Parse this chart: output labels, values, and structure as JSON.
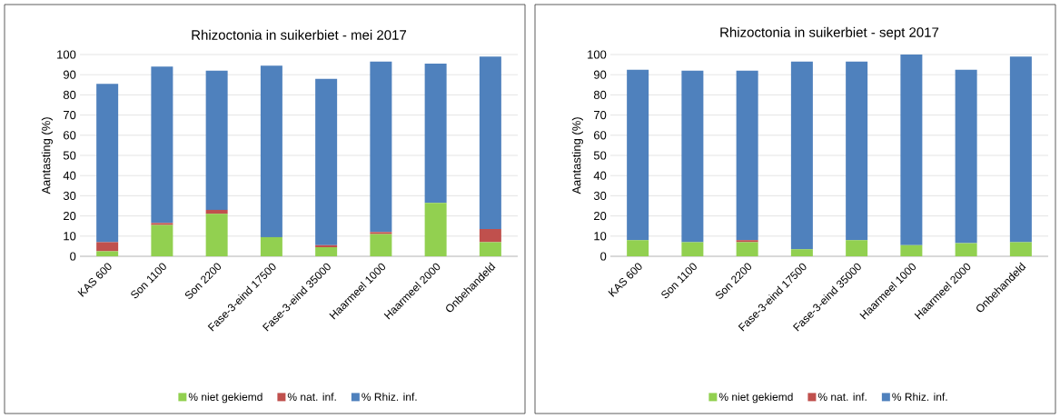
{
  "chart_data": [
    {
      "type": "bar",
      "title": "Rhizoctonia in suikerbiet - mei 2017",
      "ylabel": "Aantasting (%)",
      "categories": [
        "KAS 600",
        "Son 1100",
        "Son 2200",
        "Fase-3-eind 17500",
        "Fase-3-eind 35000",
        "Haarmeel 1000",
        "Haarmeel 2000",
        "Onbehandeld"
      ],
      "series": [
        {
          "name": "% niet gekiemd",
          "color": "#92d050",
          "values": [
            2.5,
            15.5,
            21,
            9.5,
            4.5,
            11,
            26.5,
            7
          ]
        },
        {
          "name": "% nat. inf.",
          "color": "#c0504d",
          "values": [
            4.5,
            1,
            2,
            0,
            1,
            1,
            0,
            6.5
          ]
        },
        {
          "name": "% Rhiz. inf.",
          "color": "#4f81bd",
          "values": [
            78.5,
            77.5,
            69,
            85,
            82.5,
            84.5,
            69,
            85.5
          ]
        }
      ],
      "stacked": true,
      "ylim": [
        0,
        100
      ],
      "yticks": [
        0,
        10,
        20,
        30,
        40,
        50,
        60,
        70,
        80,
        90,
        100
      ],
      "grid": "y",
      "legend": "bottom"
    },
    {
      "type": "bar",
      "title": "Rhizoctonia in suikerbiet - sept 2017",
      "ylabel": "Aantasting (%)",
      "categories": [
        "KAS 600",
        "Son 1100",
        "Son 2200",
        "Fase-3-eind 17500",
        "Fase-3-eind 35000",
        "Haarmeel 1000",
        "Haarmeel 2000",
        "Onbehandeld"
      ],
      "series": [
        {
          "name": "% niet gekiemd",
          "color": "#92d050",
          "values": [
            8,
            7,
            7,
            3.5,
            8,
            5.5,
            6.5,
            7
          ]
        },
        {
          "name": "% nat. inf.",
          "color": "#c0504d",
          "values": [
            0,
            0,
            1,
            0,
            0,
            0,
            0,
            0
          ]
        },
        {
          "name": "% Rhiz. inf.",
          "color": "#4f81bd",
          "values": [
            84.5,
            85,
            84,
            93,
            88.5,
            94.5,
            86,
            92
          ]
        }
      ],
      "stacked": true,
      "ylim": [
        0,
        100
      ],
      "yticks": [
        0,
        10,
        20,
        30,
        40,
        50,
        60,
        70,
        80,
        90,
        100
      ],
      "grid": "y",
      "legend": "bottom"
    }
  ]
}
